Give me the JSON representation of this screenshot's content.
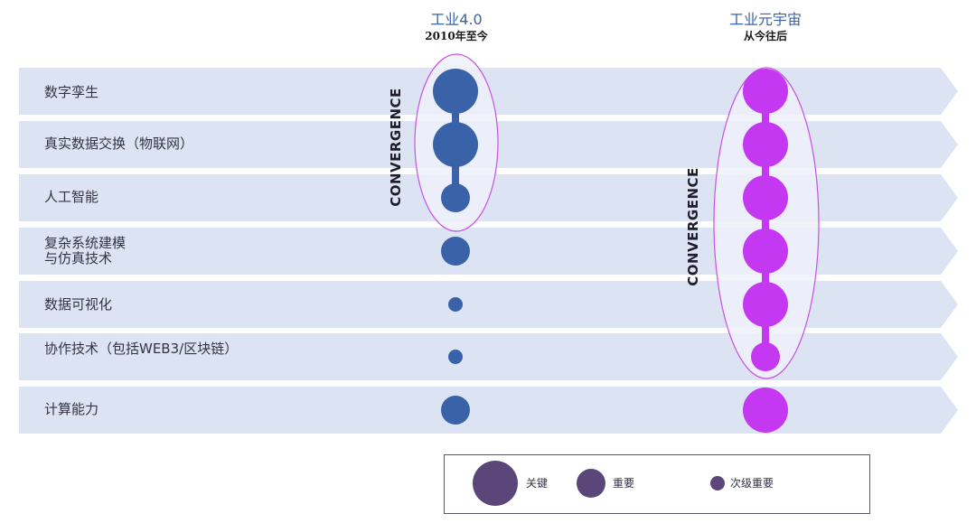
{
  "columns": [
    {
      "title": "工业4.0",
      "subtitle": "2010年至今",
      "color": "#3a62a8"
    },
    {
      "title": "工业元宇宙",
      "subtitle": "从今往后",
      "color": "#c538f2"
    }
  ],
  "rows": [
    {
      "label": "数字孪生",
      "industry40": "key",
      "metaverse": "key"
    },
    {
      "label": "真实数据交换（物联网）",
      "industry40": "key",
      "metaverse": "key"
    },
    {
      "label": "人工智能",
      "industry40": "important",
      "metaverse": "key"
    },
    {
      "label": "复杂系统建模\n与仿真技术",
      "industry40": "important",
      "metaverse": "key"
    },
    {
      "label": "数据可视化",
      "industry40": "secondary",
      "metaverse": "key"
    },
    {
      "label": "协作技术（包括WEB3/区块链）",
      "industry40": "secondary",
      "metaverse": "important"
    },
    {
      "label": "计算能力",
      "industry40": "important",
      "metaverse": "key"
    }
  ],
  "convergence": {
    "label": "CONVERGENCE",
    "industry40_rows": [
      0,
      1,
      2
    ],
    "metaverse_rows": [
      0,
      1,
      2,
      3,
      4,
      5
    ]
  },
  "legend": {
    "key": "关键",
    "important": "重要",
    "secondary": "次级重要",
    "color": "#5a4678"
  },
  "colors": {
    "band": "#dce4f4",
    "ellipse_fill": "#eef1fa",
    "ellipse_stroke": "#c84fe8"
  }
}
